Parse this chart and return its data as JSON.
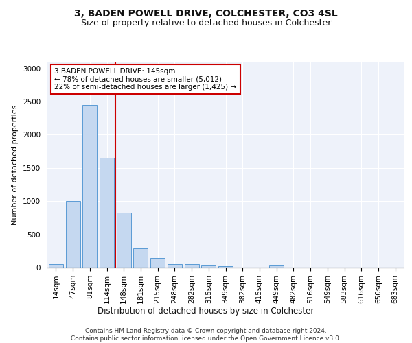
{
  "title1": "3, BADEN POWELL DRIVE, COLCHESTER, CO3 4SL",
  "title2": "Size of property relative to detached houses in Colchester",
  "xlabel": "Distribution of detached houses by size in Colchester",
  "ylabel": "Number of detached properties",
  "categories": [
    "14sqm",
    "47sqm",
    "81sqm",
    "114sqm",
    "148sqm",
    "181sqm",
    "215sqm",
    "248sqm",
    "282sqm",
    "315sqm",
    "349sqm",
    "382sqm",
    "415sqm",
    "449sqm",
    "482sqm",
    "516sqm",
    "549sqm",
    "583sqm",
    "616sqm",
    "650sqm",
    "683sqm"
  ],
  "values": [
    55,
    1000,
    2450,
    1650,
    830,
    290,
    145,
    55,
    50,
    35,
    25,
    0,
    0,
    30,
    0,
    0,
    0,
    0,
    0,
    0,
    0
  ],
  "bar_color": "#c5d8f0",
  "bar_edge_color": "#5b9bd5",
  "vline_index": 4,
  "vline_color": "#cc0000",
  "annotation_text": "3 BADEN POWELL DRIVE: 145sqm\n← 78% of detached houses are smaller (5,012)\n22% of semi-detached houses are larger (1,425) →",
  "annotation_box_color": "#ffffff",
  "annotation_box_edge": "#cc0000",
  "ylim": [
    0,
    3100
  ],
  "yticks": [
    0,
    500,
    1000,
    1500,
    2000,
    2500,
    3000
  ],
  "footer": "Contains HM Land Registry data © Crown copyright and database right 2024.\nContains public sector information licensed under the Open Government Licence v3.0.",
  "bg_color": "#eef2fa",
  "title1_fontsize": 10,
  "title2_fontsize": 9,
  "xlabel_fontsize": 8.5,
  "ylabel_fontsize": 8,
  "tick_fontsize": 7.5,
  "annotation_fontsize": 7.5,
  "footer_fontsize": 6.5
}
